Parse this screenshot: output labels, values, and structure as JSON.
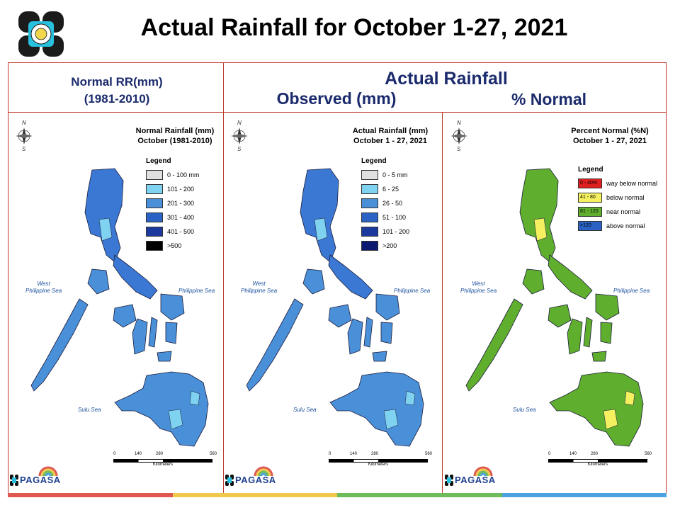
{
  "page_title": "Actual Rainfall for October 1-27, 2021",
  "headers": {
    "normal": "Normal RR(mm)",
    "normal_period": "(1981-2010)",
    "actual": "Actual Rainfall",
    "observed": "Observed (mm)",
    "percent": "% Normal"
  },
  "panels": [
    {
      "map_title_1": "Normal Rainfall (mm)",
      "map_title_2": "October (1981-2010)",
      "legend_title": "Legend",
      "legend": [
        {
          "label": "0 - 100 mm",
          "color": "#e0e0e0",
          "inner": ""
        },
        {
          "label": "101 - 200",
          "color": "#7fd3f0",
          "inner": ""
        },
        {
          "label": "201 - 300",
          "color": "#4a90d9",
          "inner": ""
        },
        {
          "label": "301 - 400",
          "color": "#2a63c4",
          "inner": ""
        },
        {
          "label": "401 - 500",
          "color": "#1c3a9e",
          "inner": ""
        },
        {
          "label": ">500",
          "color": "#000000",
          "inner": ""
        }
      ],
      "map_colors": {
        "north": "#3a78d4",
        "central": "#4a90d9",
        "south": "#4a90d9",
        "accent": "#7fd3f0"
      }
    },
    {
      "map_title_1": "Actual Rainfall (mm)",
      "map_title_2": "October 1 - 27, 2021",
      "legend_title": "Legend",
      "legend": [
        {
          "label": "0 - 5 mm",
          "color": "#e0e0e0",
          "inner": ""
        },
        {
          "label": "6 - 25",
          "color": "#7fd3f0",
          "inner": ""
        },
        {
          "label": "26 - 50",
          "color": "#4a90d9",
          "inner": ""
        },
        {
          "label": "51 - 100",
          "color": "#2a63c4",
          "inner": ""
        },
        {
          "label": "101 - 200",
          "color": "#1c3a9e",
          "inner": ""
        },
        {
          "label": ">200",
          "color": "#0a1870",
          "inner": ""
        }
      ],
      "map_colors": {
        "north": "#3a78d4",
        "central": "#4a90d9",
        "south": "#4a90d9",
        "accent": "#7fd3f0"
      }
    },
    {
      "map_title_1": "Percent Normal (%N)",
      "map_title_2": "October 1 - 27, 2021",
      "legend_title": "Legend",
      "legend": [
        {
          "label": "way below normal",
          "color": "#e02020",
          "inner": "0 - 40%"
        },
        {
          "label": "below normal",
          "color": "#f5f060",
          "inner": "41 - 80"
        },
        {
          "label": "near normal",
          "color": "#5fae2e",
          "inner": "81 - 120"
        },
        {
          "label": "above normal",
          "color": "#2a63c4",
          "inner": ">120"
        }
      ],
      "map_colors": {
        "north": "#5fae2e",
        "central": "#5fae2e",
        "south": "#5fae2e",
        "accent": "#f5f060"
      }
    }
  ],
  "seas": {
    "west_1": "West",
    "west_2": "Philippine Sea",
    "east": "Philippine Sea",
    "sulu": "Sulu Sea"
  },
  "scale": {
    "ticks": [
      "0",
      "140",
      "280",
      "560"
    ],
    "unit": "Kilometers"
  },
  "compass": {
    "n": "N",
    "s": "S"
  },
  "pagasa": {
    "name": "PAGASA"
  },
  "stripe_colors": [
    "#e0574f",
    "#f2c84b",
    "#6dbb5a",
    "#4aa3df"
  ]
}
